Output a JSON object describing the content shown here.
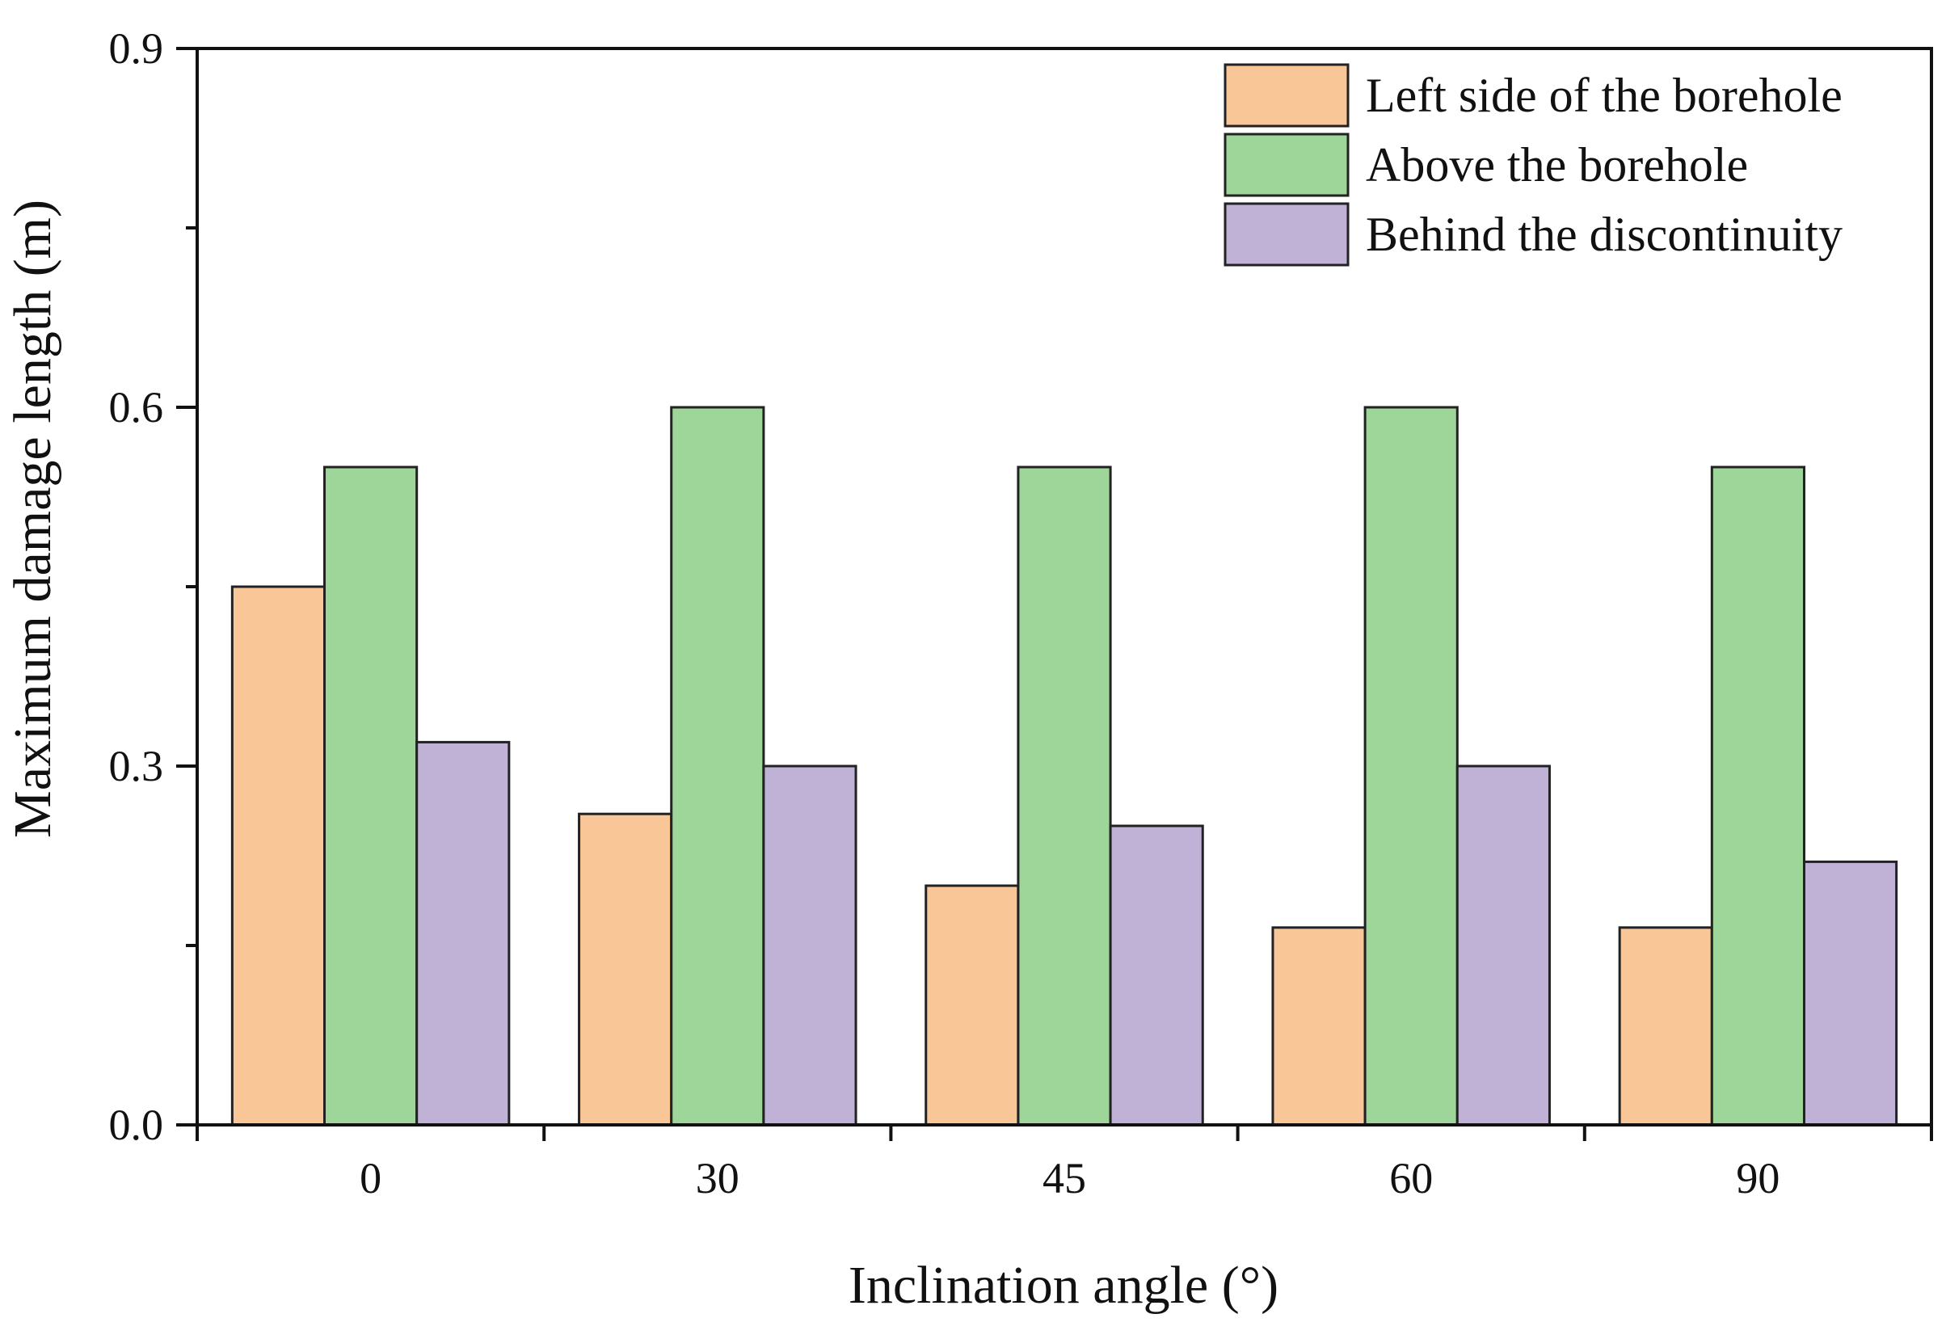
{
  "chart_data": {
    "type": "bar",
    "title": "",
    "xlabel": "Inclination angle (°)",
    "ylabel": "Maximum damage length (m)",
    "categories": [
      "0",
      "30",
      "45",
      "60",
      "90"
    ],
    "ylim": [
      0,
      0.9
    ],
    "yticks": [
      "0.0",
      "0.3",
      "0.6",
      "0.9"
    ],
    "grid": false,
    "legend_position": "top-right",
    "series": [
      {
        "name": "Left side of the borehole",
        "color": "#f9c797",
        "values": [
          0.45,
          0.26,
          0.2,
          0.165,
          0.165
        ]
      },
      {
        "name": "Above the borehole",
        "color": "#9ed699",
        "values": [
          0.55,
          0.6,
          0.55,
          0.6,
          0.55
        ]
      },
      {
        "name": "Behind the discontinuity",
        "color": "#c0b1d7",
        "values": [
          0.32,
          0.3,
          0.25,
          0.3,
          0.22
        ]
      }
    ]
  }
}
